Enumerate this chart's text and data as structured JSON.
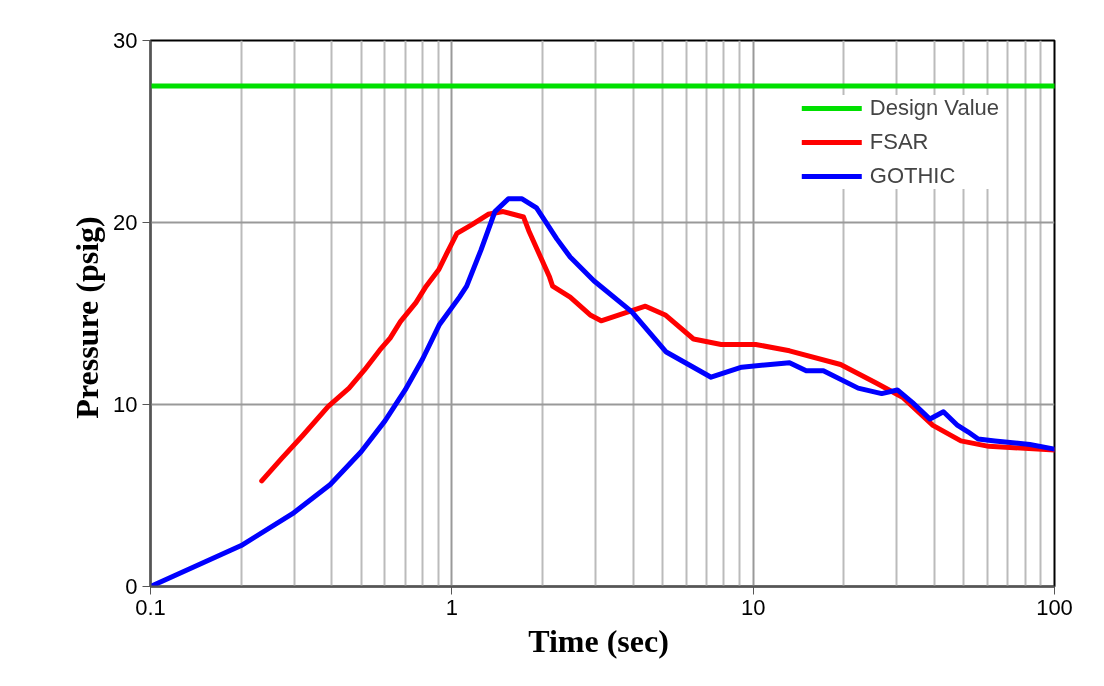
{
  "chart_data": {
    "type": "line",
    "xlabel": "Time  (sec)",
    "ylabel": "Pressure  (psig)",
    "log": "x",
    "xlim": [
      0.1,
      100
    ],
    "xticks": [
      0.1,
      1,
      10,
      100
    ],
    "ylim": [
      0,
      30
    ],
    "yticks": [
      0,
      10,
      20,
      30
    ],
    "grid": true,
    "legend": "top right",
    "line_style": "solid",
    "marker": "none",
    "series": [
      {
        "name": "Design Value",
        "color": "#00e000",
        "x": [
          0.1,
          100
        ],
        "values": [
          27.5,
          27.5
        ]
      },
      {
        "name": "FSAR",
        "color": "#ff0000",
        "x": [
          0.234,
          0.273,
          0.32,
          0.389,
          0.456,
          0.513,
          0.577,
          0.624,
          0.675,
          0.76,
          0.822,
          0.904,
          0.962,
          1.04,
          1.17,
          1.32,
          1.48,
          1.73,
          1.8,
          2.11,
          2.16,
          2.47,
          2.89,
          3.13,
          4.39,
          5.13,
          6.34,
          7.83,
          10.2,
          13.2,
          19.5,
          25.5,
          31.3,
          39.5,
          48.9,
          60.5,
          100
        ],
        "values": [
          5.8,
          7.05,
          8.3,
          9.9,
          10.9,
          11.9,
          13.0,
          13.65,
          14.55,
          15.6,
          16.5,
          17.4,
          18.3,
          19.4,
          19.9,
          20.45,
          20.6,
          20.3,
          19.55,
          17.0,
          16.5,
          15.9,
          14.9,
          14.6,
          15.4,
          14.9,
          13.6,
          13.3,
          13.3,
          12.95,
          12.2,
          11.2,
          10.4,
          8.85,
          8.0,
          7.7,
          7.5
        ]
      },
      {
        "name": "GOTHIC",
        "color": "#0000ff",
        "x": [
          0.1,
          0.2,
          0.296,
          0.395,
          0.5,
          0.6,
          0.7,
          0.8,
          0.91,
          1.06,
          1.12,
          1.25,
          1.39,
          1.54,
          1.71,
          1.91,
          2.23,
          2.47,
          2.96,
          3.95,
          5.13,
          7.25,
          9.16,
          13.2,
          15.0,
          17.1,
          22.3,
          26.7,
          30.1,
          33.8,
          38.6,
          42.8,
          47.7,
          51.6,
          55.8,
          63.4,
          82.8,
          100
        ],
        "values": [
          0,
          2.25,
          4.0,
          5.6,
          7.4,
          9.1,
          10.8,
          12.5,
          14.4,
          15.9,
          16.5,
          18.5,
          20.6,
          21.3,
          21.3,
          20.8,
          19.1,
          18.1,
          16.8,
          15.1,
          12.9,
          11.5,
          12.05,
          12.3,
          11.85,
          11.85,
          10.9,
          10.6,
          10.8,
          10.1,
          9.2,
          9.6,
          8.85,
          8.5,
          8.1,
          8.0,
          7.8,
          7.55
        ]
      }
    ]
  }
}
